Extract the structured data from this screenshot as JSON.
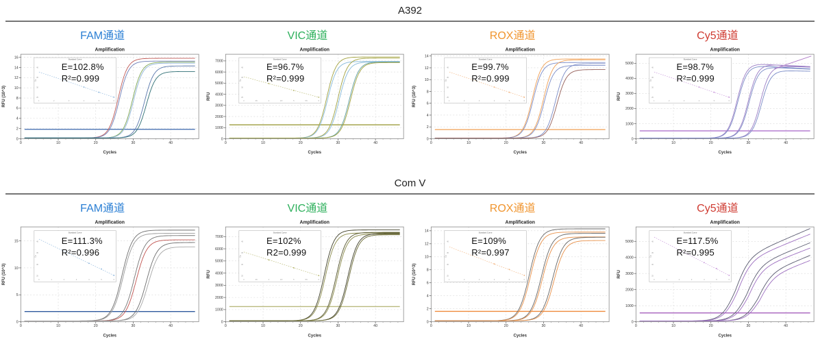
{
  "sections": [
    {
      "title": "A392"
    },
    {
      "title": "Com V"
    }
  ],
  "accent_colors": {
    "fam": "#2b7fd4",
    "vic": "#2eb05c",
    "rox": "#f0952f",
    "cy5": "#cf3b31"
  },
  "chart_data": [
    {
      "group": "A392",
      "channel": "FAM通道",
      "channel_color": "#2b7fd4",
      "type": "line",
      "title": "Amplification",
      "xlabel": "Cycles",
      "ylabel": "RFU (10^3)",
      "xlim": [
        0,
        47.5
      ],
      "xticks": [
        0,
        10,
        20,
        30,
        40
      ],
      "ylim": [
        0,
        16.6
      ],
      "yticks": [
        0,
        2,
        4,
        6,
        8,
        10,
        12,
        14,
        16
      ],
      "grid": true,
      "baseline": 0.15,
      "k": 0.8,
      "threshold": {
        "y": 1.85,
        "color": "#3a66ad"
      },
      "series": [
        {
          "midpoint": 26.0,
          "plateau": 15.8,
          "color": "#c05a56"
        },
        {
          "midpoint": 26.3,
          "plateau": 15.25,
          "color": "#6f7fb8"
        },
        {
          "midpoint": 29.8,
          "plateau": 15.05,
          "color": "#7fa754"
        },
        {
          "midpoint": 30.1,
          "plateau": 14.85,
          "color": "#8fb3d9"
        },
        {
          "midpoint": 33.0,
          "plateau": 14.3,
          "color": "#5b79ad"
        },
        {
          "midpoint": 33.5,
          "plateau": 13.2,
          "color": "#2f6f74"
        }
      ],
      "inset": {
        "title": "Standard Curve",
        "ylabel": "Cq",
        "color": "#8ab4dc",
        "xticks": [
          1,
          2,
          3,
          4,
          5,
          6
        ],
        "yticks": [
          25,
          30,
          35,
          40
        ],
        "points": [
          [
            4,
            30.2
          ],
          [
            5,
            27.6
          ],
          [
            6,
            25.1
          ]
        ]
      },
      "stats": {
        "efficiency": "E=102.8%",
        "r2": "R²=0.999"
      }
    },
    {
      "group": "A392",
      "channel": "VIC通道",
      "channel_color": "#2eb05c",
      "type": "line",
      "title": "Amplification",
      "xlabel": "Cycles",
      "ylabel": "RFU",
      "xlim": [
        0,
        47.5
      ],
      "xticks": [
        0,
        10,
        20,
        30,
        40
      ],
      "ylim": [
        0,
        7600
      ],
      "yticks": [
        0,
        1000,
        2000,
        3000,
        4000,
        5000,
        6000,
        7000
      ],
      "grid": true,
      "baseline": 55,
      "k": 0.8,
      "threshold": {
        "y": 1250,
        "color": "#9c9c3c"
      },
      "series": [
        {
          "midpoint": 27.0,
          "plateau": 7350,
          "color": "#a2a23f"
        },
        {
          "midpoint": 27.2,
          "plateau": 6950,
          "color": "#86b9d9"
        },
        {
          "midpoint": 30.0,
          "plateau": 7250,
          "color": "#a2a23f"
        },
        {
          "midpoint": 30.3,
          "plateau": 6900,
          "color": "#86b9d9"
        },
        {
          "midpoint": 33.0,
          "plateau": 6900,
          "color": "#5f9ea0"
        },
        {
          "midpoint": 33.3,
          "plateau": 6850,
          "color": "#a2a23f"
        }
      ],
      "inset": {
        "title": "Standard Curve",
        "ylabel": "Cq",
        "color": "#b5b56a",
        "xticks": [
          3,
          3.5,
          4,
          4.5,
          5,
          5.5,
          6
        ],
        "yticks": [
          25,
          30,
          35,
          40
        ],
        "points": [
          [
            4,
            32.0
          ],
          [
            5,
            28.5
          ],
          [
            6,
            25.1
          ]
        ]
      },
      "stats": {
        "efficiency": "E=96.7%",
        "r2": "R²=0.999"
      }
    },
    {
      "group": "A392",
      "channel": "ROX通道",
      "channel_color": "#f0952f",
      "type": "line",
      "title": "Amplification",
      "xlabel": "Cycles",
      "ylabel": "RFU (10^3)",
      "xlim": [
        0,
        47.5
      ],
      "xticks": [
        0,
        10,
        20,
        30,
        40
      ],
      "ylim": [
        0,
        14.3
      ],
      "yticks": [
        0,
        2,
        4,
        6,
        8,
        10,
        12,
        14
      ],
      "grid": true,
      "baseline": 0.1,
      "k": 0.8,
      "threshold": {
        "y": 1.55,
        "color": "#f0a055"
      },
      "series": [
        {
          "midpoint": 27.0,
          "plateau": 13.5,
          "color": "#f0a055"
        },
        {
          "midpoint": 27.2,
          "plateau": 12.9,
          "color": "#7b8cc7"
        },
        {
          "midpoint": 30.0,
          "plateau": 13.35,
          "color": "#f0a055"
        },
        {
          "midpoint": 30.2,
          "plateau": 12.4,
          "color": "#7b8cc7"
        },
        {
          "midpoint": 33.2,
          "plateau": 12.7,
          "color": "#7b8cc7"
        },
        {
          "midpoint": 33.6,
          "plateau": 11.7,
          "color": "#96605a"
        }
      ],
      "inset": {
        "title": "Standard Curve",
        "ylabel": "Cq",
        "color": "#f2b079",
        "xticks": [
          1,
          2,
          3,
          4,
          5,
          6
        ],
        "yticks": [
          25,
          30,
          35,
          40
        ],
        "points": [
          [
            4,
            30.2
          ],
          [
            5,
            27.6
          ],
          [
            6,
            25.1
          ]
        ]
      },
      "stats": {
        "efficiency": "E=99.7%",
        "r2": "R²=0.999"
      }
    },
    {
      "group": "A392",
      "channel": "Cy5通道",
      "channel_color": "#cf3b31",
      "type": "line",
      "title": "Amplification",
      "xlabel": "Cycles",
      "ylabel": "RFU",
      "xlim": [
        0,
        47.5
      ],
      "xticks": [
        0,
        10,
        20,
        30,
        40
      ],
      "ylim": [
        0,
        5600
      ],
      "yticks": [
        0,
        1000,
        2000,
        3000,
        4000,
        5000
      ],
      "grid": true,
      "baseline": 35,
      "k": 0.8,
      "threshold": {
        "y": 520,
        "color": "#a864c8"
      },
      "series": [
        {
          "midpoint": 27.0,
          "plateau": 5050,
          "color": "#9b7ec5",
          "drift": -16
        },
        {
          "midpoint": 27.2,
          "plateau": 4900,
          "color": "#7b8cc7",
          "drift": -14
        },
        {
          "midpoint": 30.0,
          "plateau": 4980,
          "color": "#9b7ec5",
          "drift": -12
        },
        {
          "midpoint": 30.2,
          "plateau": 4800,
          "color": "#7b8cc7",
          "drift": -12
        },
        {
          "midpoint": 33.2,
          "plateau": 4850,
          "color": "#9b7ec5",
          "drift": -8
        },
        {
          "midpoint": 33.5,
          "plateau": 4550,
          "color": "#7b8cc7",
          "drift": -6
        }
      ],
      "segments": [
        {
          "from": [
            37,
            4650
          ],
          "to": [
            46.8,
            5480
          ],
          "color": "#b07cc8"
        }
      ],
      "inset": {
        "title": "Standard Curve",
        "ylabel": "Cq",
        "color": "#c490d8",
        "xticks": [
          1,
          2,
          3,
          4,
          5,
          6
        ],
        "yticks": [
          25,
          30,
          35,
          40
        ],
        "points": [
          [
            4,
            30.2
          ],
          [
            5,
            27.6
          ],
          [
            6,
            25.1
          ]
        ]
      },
      "stats": {
        "efficiency": "E=98.7%",
        "r2": "R²=0.999"
      }
    },
    {
      "group": "Com V",
      "channel": "FAM通道",
      "channel_color": "#2b7fd4",
      "type": "line",
      "title": "Amplification",
      "xlabel": "Cycles",
      "ylabel": "RFU (10^3)",
      "xlim": [
        0,
        47.5
      ],
      "xticks": [
        0,
        10,
        20,
        30,
        40
      ],
      "ylim": [
        0,
        17.6
      ],
      "yticks": [
        0,
        5,
        10,
        15
      ],
      "grid": true,
      "baseline": 0.15,
      "k": 0.7,
      "threshold": {
        "y": 1.9,
        "color": "#2f5a9e"
      },
      "series": [
        {
          "midpoint": 27.0,
          "plateau": 17.0,
          "color": "#6e6e6e"
        },
        {
          "midpoint": 27.3,
          "plateau": 16.4,
          "color": "#999999"
        },
        {
          "midpoint": 30.3,
          "plateau": 16.0,
          "color": "#777777"
        },
        {
          "midpoint": 30.8,
          "plateau": 15.2,
          "color": "#c0534f"
        },
        {
          "midpoint": 33.5,
          "plateau": 14.7,
          "color": "#6e6e6e"
        },
        {
          "midpoint": 34.0,
          "plateau": 13.9,
          "color": "#a6a6a6"
        }
      ],
      "inset": {
        "title": "Standard Curve",
        "ylabel": "Cq",
        "color": "#8ab4dc",
        "xticks": [
          0,
          1,
          2,
          3,
          4,
          5,
          6
        ],
        "yticks": [
          25,
          30,
          35,
          40
        ],
        "points": [
          [
            4,
            30.5
          ],
          [
            5,
            28.0
          ],
          [
            6,
            25.2
          ]
        ]
      },
      "stats": {
        "efficiency": "E=111.3%",
        "r2": "R²=0.996"
      }
    },
    {
      "group": "Com V",
      "channel": "VIC通道",
      "channel_color": "#2eb05c",
      "type": "line",
      "title": "Amplification",
      "xlabel": "Cycles",
      "ylabel": "RFU",
      "xlim": [
        0,
        47.5
      ],
      "xticks": [
        0,
        10,
        20,
        30,
        40
      ],
      "ylim": [
        0,
        7800
      ],
      "yticks": [
        0,
        1000,
        2000,
        3000,
        4000,
        5000,
        6000,
        7000
      ],
      "grid": true,
      "baseline": 80,
      "k": 0.75,
      "threshold": {
        "y": 1250,
        "color": "#b9b97e"
      },
      "series": [
        {
          "midpoint": 26.3,
          "plateau": 7550,
          "color": "#3f3f28"
        },
        {
          "midpoint": 26.6,
          "plateau": 7300,
          "color": "#8a8a4a"
        },
        {
          "midpoint": 29.5,
          "plateau": 7350,
          "color": "#55552e"
        },
        {
          "midpoint": 29.8,
          "plateau": 7200,
          "color": "#8a8a4a"
        },
        {
          "midpoint": 32.6,
          "plateau": 7250,
          "color": "#3f3f28"
        },
        {
          "midpoint": 32.9,
          "plateau": 7150,
          "color": "#6b6b35"
        }
      ],
      "inset": {
        "title": "Standard Curve",
        "ylabel": "Cq",
        "color": "#b5b56a",
        "xticks": [
          3,
          3.5,
          4,
          4.5,
          5,
          5.5,
          6
        ],
        "yticks": [
          25,
          30,
          35,
          40
        ],
        "points": [
          [
            4,
            32.0
          ],
          [
            5,
            28.5
          ],
          [
            6,
            25.1
          ]
        ]
      },
      "stats": {
        "efficiency": "E=102%",
        "r2": "R2=0.999"
      }
    },
    {
      "group": "Com V",
      "channel": "ROX通道",
      "channel_color": "#f0952f",
      "type": "line",
      "title": "Amplification",
      "xlabel": "Cycles",
      "ylabel": "RFU (10^3)",
      "xlim": [
        0,
        47.5
      ],
      "xticks": [
        0,
        10,
        20,
        30,
        40
      ],
      "ylim": [
        0,
        14.6
      ],
      "yticks": [
        0,
        2,
        4,
        6,
        8,
        10,
        12,
        14
      ],
      "grid": true,
      "baseline": 0.15,
      "k": 0.7,
      "threshold": {
        "y": 1.6,
        "color": "#ef8a3c"
      },
      "series": [
        {
          "midpoint": 26.2,
          "plateau": 14.3,
          "color": "#666666"
        },
        {
          "midpoint": 26.5,
          "plateau": 13.8,
          "color": "#e8914a"
        },
        {
          "midpoint": 29.4,
          "plateau": 13.6,
          "color": "#666666"
        },
        {
          "midpoint": 29.7,
          "plateau": 13.05,
          "color": "#e8914a"
        },
        {
          "midpoint": 32.4,
          "plateau": 13.0,
          "color": "#666666"
        },
        {
          "midpoint": 32.8,
          "plateau": 12.5,
          "color": "#e8914a"
        }
      ],
      "inset": {
        "title": "Standard Curve",
        "ylabel": "Cq",
        "color": "#f2b079",
        "xticks": [
          1,
          2,
          3,
          4,
          5,
          6
        ],
        "yticks": [
          25,
          30,
          35,
          40
        ],
        "points": [
          [
            4,
            30.2
          ],
          [
            5,
            27.8
          ],
          [
            6,
            25.2
          ]
        ]
      },
      "stats": {
        "efficiency": "E=109%",
        "r2": "R²=0.997"
      }
    },
    {
      "group": "Com V",
      "channel": "Cy5通道",
      "channel_color": "#cf3b31",
      "type": "line",
      "title": "Amplification",
      "xlabel": "Cycles",
      "ylabel": "RFU",
      "xlim": [
        0,
        47.5
      ],
      "xticks": [
        0,
        10,
        20,
        30,
        40
      ],
      "ylim": [
        0,
        5900
      ],
      "yticks": [
        0,
        1000,
        2000,
        3000,
        4000,
        5000
      ],
      "grid": true,
      "baseline": 45,
      "k": 0.55,
      "threshold": {
        "y": 550,
        "color": "#9d4fb5"
      },
      "series": [
        {
          "midpoint": 26.5,
          "plateau": 3800,
          "color": "#5a5b70",
          "drift": 100
        },
        {
          "midpoint": 27.0,
          "plateau": 3600,
          "color": "#9d6fc0",
          "drift": 95
        },
        {
          "midpoint": 29.5,
          "plateau": 3300,
          "color": "#5a5b70",
          "drift": 95
        },
        {
          "midpoint": 30.0,
          "plateau": 3100,
          "color": "#9d6fc0",
          "drift": 90
        },
        {
          "midpoint": 32.5,
          "plateau": 2800,
          "color": "#5a5b70",
          "drift": 95
        },
        {
          "midpoint": 33.0,
          "plateau": 2600,
          "color": "#9d6fc0",
          "drift": 90
        }
      ],
      "inset": {
        "title": "Standard Curve",
        "ylabel": "Cq",
        "color": "#c490d8",
        "xticks": [
          0,
          1,
          2,
          3,
          4,
          5,
          6
        ],
        "yticks": [
          25,
          30,
          35,
          40
        ],
        "points": [
          [
            4,
            30.8
          ],
          [
            5,
            28.2
          ],
          [
            6,
            25.2
          ]
        ]
      },
      "stats": {
        "efficiency": "E=117.5%",
        "r2": "R²=0.995"
      }
    }
  ]
}
